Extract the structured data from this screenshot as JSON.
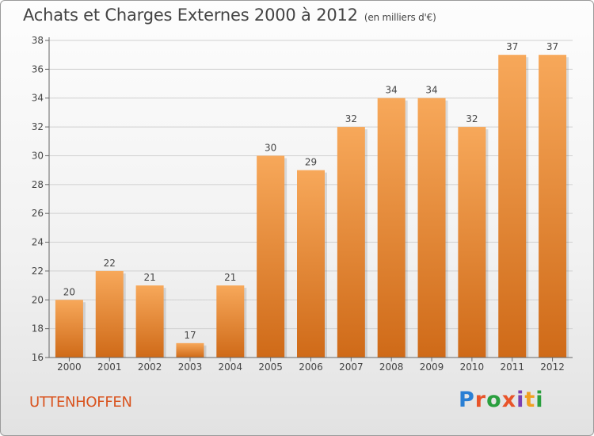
{
  "header": {
    "title": "Achats et Charges Externes 2000 à 2012",
    "unit": "(en milliers d'€)"
  },
  "footer": {
    "commune": "UTTENHOFFEN",
    "logo_text": "Proxiti",
    "logo_colors": [
      "#2a7fd4",
      "#e8542a",
      "#2a9f3e",
      "#e8542a",
      "#7b3fb0",
      "#f0a020",
      "#2a9f3e"
    ]
  },
  "colors": {
    "bar_light": "#f7a85a",
    "bar_dark": "#cf6a18",
    "axis": "#666666",
    "grid": "#d0d0d0"
  },
  "chart_data": {
    "type": "bar",
    "title": "Achats et Charges Externes 2000 à 2012",
    "subtitle": "(en milliers d'€)",
    "xlabel": "",
    "ylabel": "",
    "ylim": [
      16,
      38
    ],
    "yticks": [
      16,
      18,
      20,
      22,
      24,
      26,
      28,
      30,
      32,
      34,
      36,
      38
    ],
    "categories": [
      "2000",
      "2001",
      "2002",
      "2003",
      "2004",
      "2005",
      "2006",
      "2007",
      "2008",
      "2009",
      "2010",
      "2011",
      "2012"
    ],
    "values": [
      20,
      22,
      21,
      17,
      21,
      30,
      29,
      32,
      34,
      34,
      32,
      37,
      37
    ],
    "grid": true,
    "legend": "none"
  }
}
